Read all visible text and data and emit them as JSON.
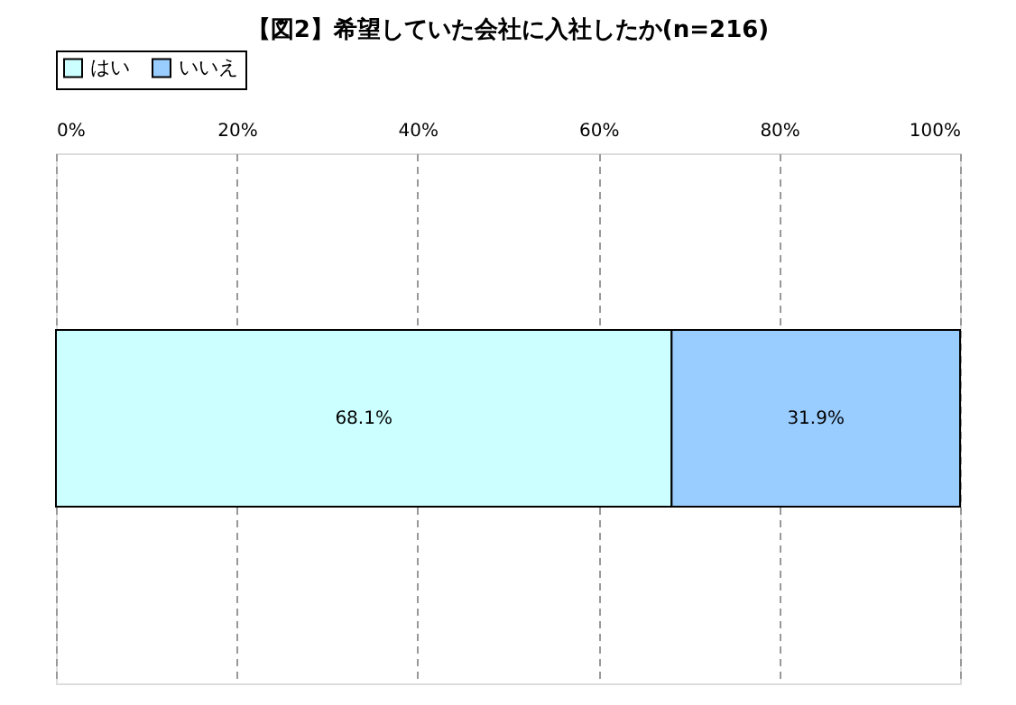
{
  "chart_data": {
    "type": "bar",
    "orientation": "horizontal",
    "stacked": true,
    "title": "【図2】希望していた会社に入社したか(n=216)",
    "categories": [
      null
    ],
    "series": [
      {
        "name": "はい",
        "color": "#ccffff",
        "values": [
          68.1
        ],
        "value_labels": [
          "68.1%"
        ]
      },
      {
        "name": "いいえ",
        "color": "#99ccff",
        "values": [
          31.9
        ],
        "value_labels": [
          "31.9%"
        ]
      }
    ],
    "xlim": [
      0,
      100
    ],
    "xticks": [
      {
        "value": 0,
        "label": "0%"
      },
      {
        "value": 20,
        "label": "20%"
      },
      {
        "value": 40,
        "label": "40%"
      },
      {
        "value": 60,
        "label": "60%"
      },
      {
        "value": 80,
        "label": "80%"
      },
      {
        "value": 100,
        "label": "100%"
      }
    ],
    "grid": "x",
    "legend": "top",
    "tick_labels": "x"
  }
}
